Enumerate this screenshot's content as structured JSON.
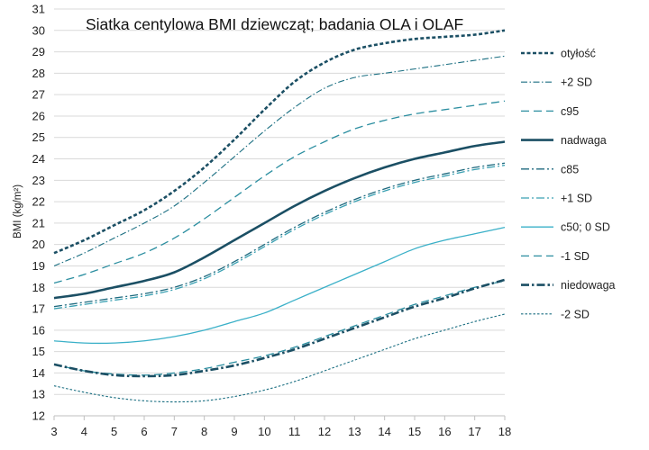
{
  "chart_data": {
    "type": "line",
    "title": "Siatka centylowa BMI dziewcząt; badania OLA i OLAF",
    "xlabel": "",
    "ylabel": "BMI (kg/m²)",
    "xlim": [
      3,
      18
    ],
    "ylim": [
      12,
      31
    ],
    "x_ticks": [
      3,
      4,
      5,
      6,
      7,
      8,
      9,
      10,
      11,
      12,
      13,
      14,
      15,
      16,
      17,
      18
    ],
    "y_ticks": [
      12,
      13,
      14,
      15,
      16,
      17,
      18,
      19,
      20,
      21,
      22,
      23,
      24,
      25,
      26,
      27,
      28,
      29,
      30,
      31
    ],
    "grid": "horizontal",
    "legend": "right",
    "x": [
      3,
      4,
      5,
      6,
      7,
      8,
      9,
      10,
      11,
      12,
      13,
      14,
      15,
      16,
      17,
      18
    ],
    "series": [
      {
        "name": "otyłość",
        "color": "#1b4f64",
        "style": "short-dash-thick",
        "values": [
          19.6,
          20.2,
          20.9,
          21.6,
          22.5,
          23.6,
          24.9,
          26.3,
          27.6,
          28.5,
          29.1,
          29.4,
          29.6,
          29.7,
          29.8,
          30.0
        ]
      },
      {
        "name": "+2 SD",
        "color": "#1b6f82",
        "style": "dash-dot-thin",
        "values": [
          19.0,
          19.6,
          20.3,
          21.0,
          21.8,
          22.9,
          24.1,
          25.3,
          26.4,
          27.3,
          27.8,
          28.0,
          28.2,
          28.4,
          28.6,
          28.8
        ]
      },
      {
        "name": "c95",
        "color": "#2b8ea0",
        "style": "long-dash",
        "values": [
          18.2,
          18.6,
          19.1,
          19.6,
          20.3,
          21.2,
          22.2,
          23.2,
          24.1,
          24.8,
          25.4,
          25.8,
          26.1,
          26.3,
          26.5,
          26.7
        ]
      },
      {
        "name": "nadwaga",
        "color": "#1b4f64",
        "style": "solid-thick",
        "values": [
          17.5,
          17.7,
          18.0,
          18.3,
          18.7,
          19.4,
          20.2,
          21.0,
          21.8,
          22.5,
          23.1,
          23.6,
          24.0,
          24.3,
          24.6,
          24.8
        ]
      },
      {
        "name": "c85",
        "color": "#1e6a7f",
        "style": "dash-dot",
        "values": [
          17.1,
          17.3,
          17.5,
          17.7,
          18.0,
          18.5,
          19.2,
          20.0,
          20.8,
          21.5,
          22.1,
          22.6,
          23.0,
          23.3,
          23.6,
          23.8
        ]
      },
      {
        "name": "+1 SD",
        "color": "#3aa0b2",
        "style": "dash-dot",
        "values": [
          17.0,
          17.2,
          17.4,
          17.6,
          17.9,
          18.4,
          19.1,
          19.9,
          20.7,
          21.4,
          22.0,
          22.5,
          22.9,
          23.2,
          23.5,
          23.7
        ]
      },
      {
        "name": "c50; 0 SD",
        "color": "#3ab0c8",
        "style": "solid",
        "values": [
          15.5,
          15.4,
          15.4,
          15.5,
          15.7,
          16.0,
          16.4,
          16.8,
          17.4,
          18.0,
          18.6,
          19.2,
          19.8,
          20.2,
          20.5,
          20.8
        ]
      },
      {
        "name": "-1 SD",
        "color": "#2b8ea0",
        "style": "long-dash",
        "values": [
          14.4,
          14.1,
          13.95,
          13.9,
          14.0,
          14.2,
          14.5,
          14.8,
          15.2,
          15.7,
          16.2,
          16.7,
          17.2,
          17.6,
          18.0,
          18.3
        ]
      },
      {
        "name": "niedowaga",
        "color": "#1b4f64",
        "style": "dash-dot-thick",
        "values": [
          14.4,
          14.1,
          13.9,
          13.85,
          13.9,
          14.1,
          14.35,
          14.7,
          15.1,
          15.6,
          16.1,
          16.6,
          17.1,
          17.5,
          17.95,
          18.35
        ]
      },
      {
        "name": "-2 SD",
        "color": "#1b6f82",
        "style": "short-dash-thin",
        "values": [
          13.4,
          13.1,
          12.85,
          12.7,
          12.65,
          12.7,
          12.9,
          13.2,
          13.6,
          14.1,
          14.6,
          15.1,
          15.6,
          16.0,
          16.4,
          16.75
        ]
      }
    ]
  }
}
